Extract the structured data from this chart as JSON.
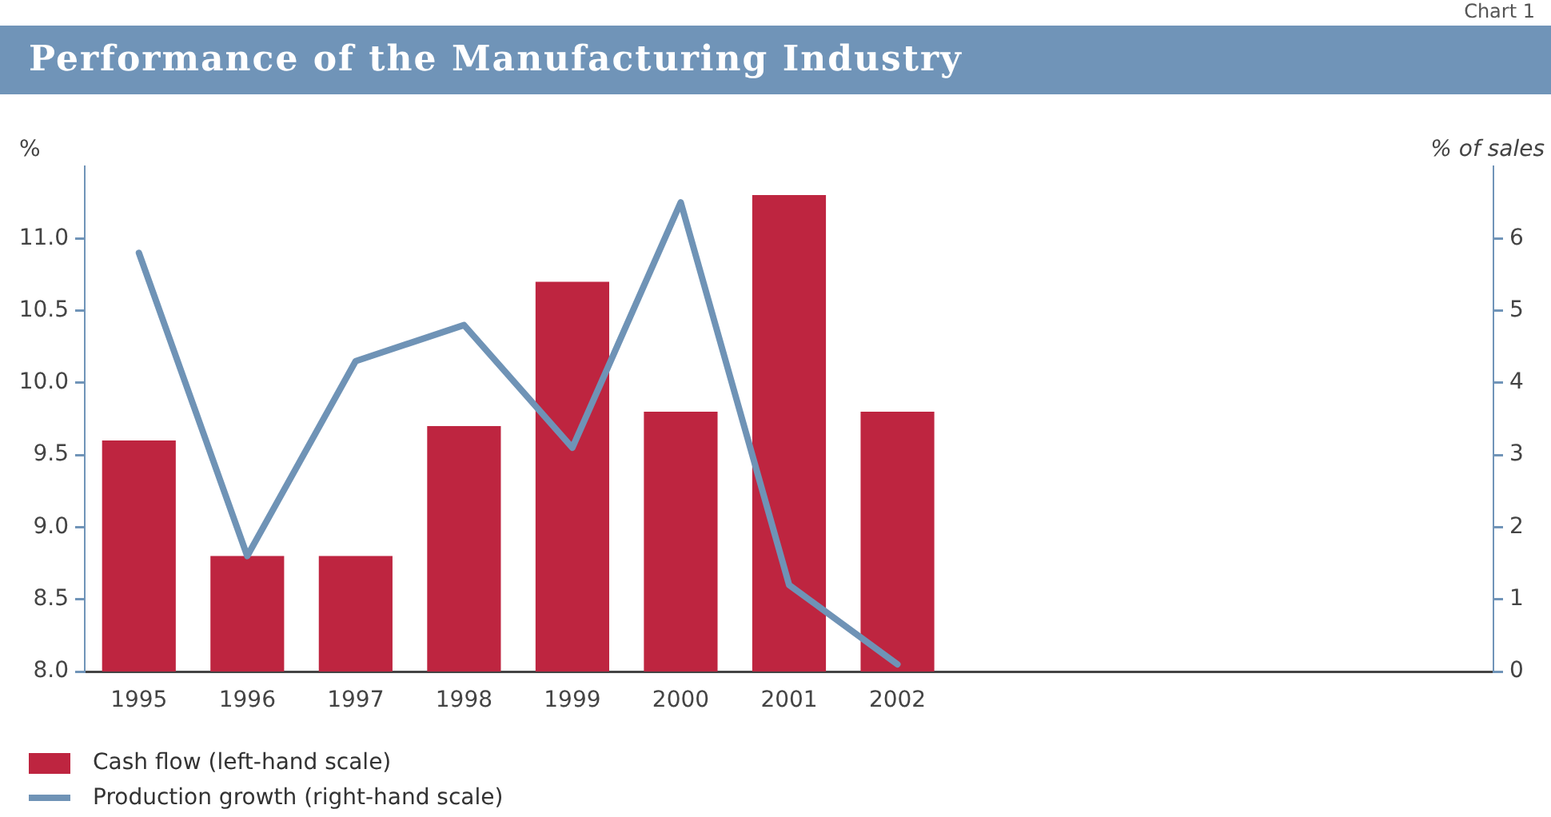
{
  "chart_data": {
    "type": "bar",
    "title": "Performance of the Manufacturing Industry",
    "ylabel": "%",
    "y2label": "% of sales",
    "annotations": [
      "Chart 1"
    ],
    "categories": [
      "1995",
      "1996",
      "1997",
      "1998",
      "1999",
      "2000",
      "2001",
      "2002",
      null,
      null,
      null,
      null,
      null
    ],
    "series": [
      {
        "name": "Cash flow (left-hand scale)",
        "color": "#be2540",
        "values": [
          9.6,
          8.8,
          8.8,
          9.7,
          10.7,
          9.8,
          11.3,
          9.8,
          null,
          null,
          null,
          null,
          null
        ]
      },
      {
        "name": "Production growth (right-hand scale)",
        "type": "line",
        "axis": "y2",
        "color": "#6f93b6",
        "values": [
          5.8,
          1.6,
          4.3,
          4.8,
          3.1,
          6.5,
          1.2,
          0.1,
          null,
          null,
          null,
          null,
          null
        ]
      }
    ],
    "ylim": [
      8,
      11.5
    ],
    "yticks": [
      {
        "value": 8,
        "label": "8.0"
      },
      8.5,
      {
        "value": 9,
        "label": "9.0"
      },
      9.5,
      {
        "value": 10,
        "label": "10.0"
      },
      10.5,
      {
        "value": 11,
        "label": "11.0"
      }
    ],
    "y2lim": [
      0,
      7
    ],
    "y2ticks": [
      0,
      1,
      2,
      3,
      4,
      5,
      6
    ],
    "legend": "bottom left",
    "marker": "none",
    "line_style": "solid"
  }
}
